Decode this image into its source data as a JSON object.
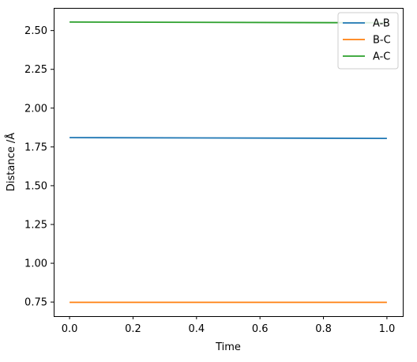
{
  "chart_data": {
    "type": "line",
    "title": "",
    "xlabel": "Time",
    "ylabel": "Distance /Å",
    "xlim": [
      -0.05,
      1.05
    ],
    "ylim": [
      0.659,
      2.646
    ],
    "xticks": [
      0.0,
      0.2,
      0.4,
      0.6,
      0.8,
      1.0
    ],
    "xtick_labels": [
      "0.0",
      "0.2",
      "0.4",
      "0.6",
      "0.8",
      "1.0"
    ],
    "yticks": [
      0.75,
      1.0,
      1.25,
      1.5,
      1.75,
      2.0,
      2.25,
      2.5
    ],
    "ytick_labels": [
      "0.75",
      "1.00",
      "1.25",
      "1.50",
      "1.75",
      "2.00",
      "2.25",
      "2.50"
    ],
    "grid": false,
    "legend_position": "top-right",
    "series": [
      {
        "name": "A-B",
        "color": "#1f77b4",
        "x": [
          0.0,
          1.0
        ],
        "values": [
          1.81,
          1.805
        ]
      },
      {
        "name": "B-C",
        "color": "#ff7f0e",
        "x": [
          0.0,
          1.0
        ],
        "values": [
          0.748,
          0.748
        ]
      },
      {
        "name": "A-C",
        "color": "#2ca02c",
        "x": [
          0.0,
          1.0
        ],
        "values": [
          2.555,
          2.55
        ]
      }
    ]
  }
}
